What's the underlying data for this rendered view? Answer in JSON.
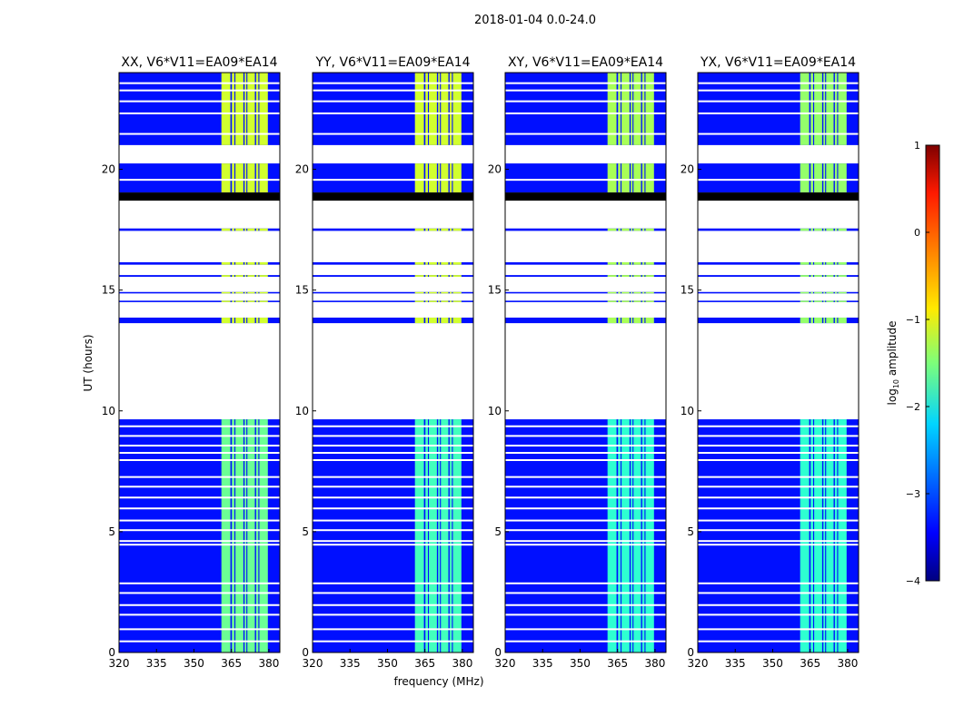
{
  "chart_data": {
    "type": "heatmap",
    "title": "2018-01-04 0.0-24.0",
    "xlabel": "frequency (MHz)",
    "ylabel": "UT (hours)",
    "xlim": [
      320,
      384.4
    ],
    "ylim": [
      0,
      24
    ],
    "xticks": [
      "320",
      "335",
      "350",
      "365",
      "380"
    ],
    "xtick_values": [
      320,
      335,
      350,
      365,
      380
    ],
    "yticks": [
      "0",
      "5",
      "10",
      "15",
      "20"
    ],
    "ytick_values": [
      0,
      5,
      10,
      15,
      20
    ],
    "panels": [
      {
        "title": "XX, V6*V11=EA09*EA14",
        "band_log_amp_upper": -1.1,
        "band_log_amp_lower": -1.6
      },
      {
        "title": "YY, V6*V11=EA09*EA14",
        "band_log_amp_upper": -1.1,
        "band_log_amp_lower": -1.8
      },
      {
        "title": "XY, V6*V11=EA09*EA14",
        "band_log_amp_upper": -1.3,
        "band_log_amp_lower": -1.9
      },
      {
        "title": "YX, V6*V11=EA09*EA14",
        "band_log_amp_upper": -1.4,
        "band_log_amp_lower": -1.9
      }
    ],
    "background_log_amp": -3.3,
    "data_intervals_hours": [
      [
        0,
        9.65
      ],
      [
        13.63,
        13.86
      ],
      [
        14.5,
        14.56
      ],
      [
        14.86,
        14.92
      ],
      [
        15.55,
        15.62
      ],
      [
        16.05,
        16.15
      ],
      [
        17.45,
        17.55
      ],
      [
        19.04,
        20.24
      ],
      [
        21.0,
        24
      ]
    ],
    "flagged_black_hours": [
      [
        18.7,
        19.04
      ]
    ],
    "gap_lines_hours": [
      0.5,
      1.0,
      1.6,
      2.0,
      2.5,
      2.9,
      4.5,
      4.65,
      5.1,
      5.5,
      6.0,
      6.45,
      6.9,
      7.3,
      8.0,
      8.3,
      8.6,
      9.0,
      9.4,
      19.6,
      21.5,
      22.35,
      22.85,
      23.3,
      23.6
    ],
    "bright_columns_mhz": [
      [
        361,
        364.6
      ],
      [
        365.2,
        366.2
      ],
      [
        366.6,
        369.8
      ],
      [
        370.3,
        371
      ],
      [
        371.4,
        374.4
      ],
      [
        374.9,
        375.8
      ],
      [
        376.2,
        379.6
      ]
    ],
    "colorbar": {
      "label": "log10 amplitude",
      "label_main": "log",
      "label_sub": "10",
      "label_tail": " amplitude",
      "range": [
        -4,
        1
      ],
      "ticks": [
        "1",
        "0",
        "−1",
        "−2",
        "−3",
        "−4"
      ],
      "tick_values": [
        1,
        0,
        -1,
        -2,
        -3,
        -4
      ]
    }
  }
}
